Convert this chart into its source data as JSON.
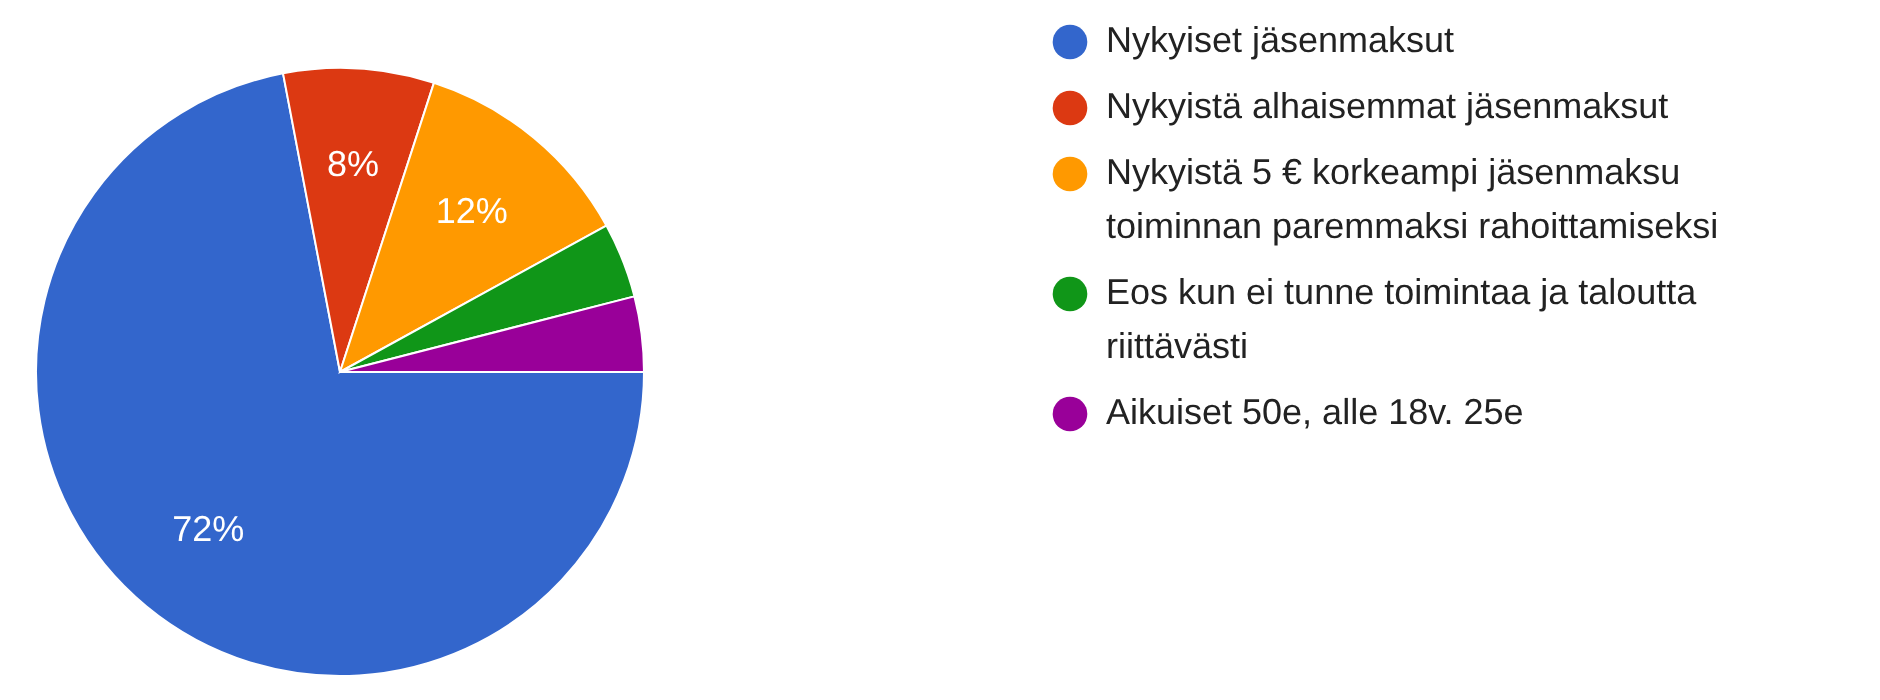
{
  "chart_data": {
    "type": "pie",
    "categories": [
      "Nykyiset jäsenmaksut",
      "Nykyistä alhaisemmat jäsenmaksut",
      "Nykyistä 5 € korkeampi jäsenmaksu toiminnan paremmaksi rahoittamiseksi",
      "Eos kun ei tunne toimintaa ja taloutta riittävästi",
      "Aikuiset 50e, alle 18v. 25e"
    ],
    "values": [
      72,
      8,
      12,
      4,
      4
    ],
    "colors": [
      "#3366cc",
      "#dc3912",
      "#ff9900",
      "#109618",
      "#990099"
    ],
    "value_labels": [
      "72%",
      "8%",
      "12%",
      null,
      null
    ],
    "legend": "right"
  }
}
